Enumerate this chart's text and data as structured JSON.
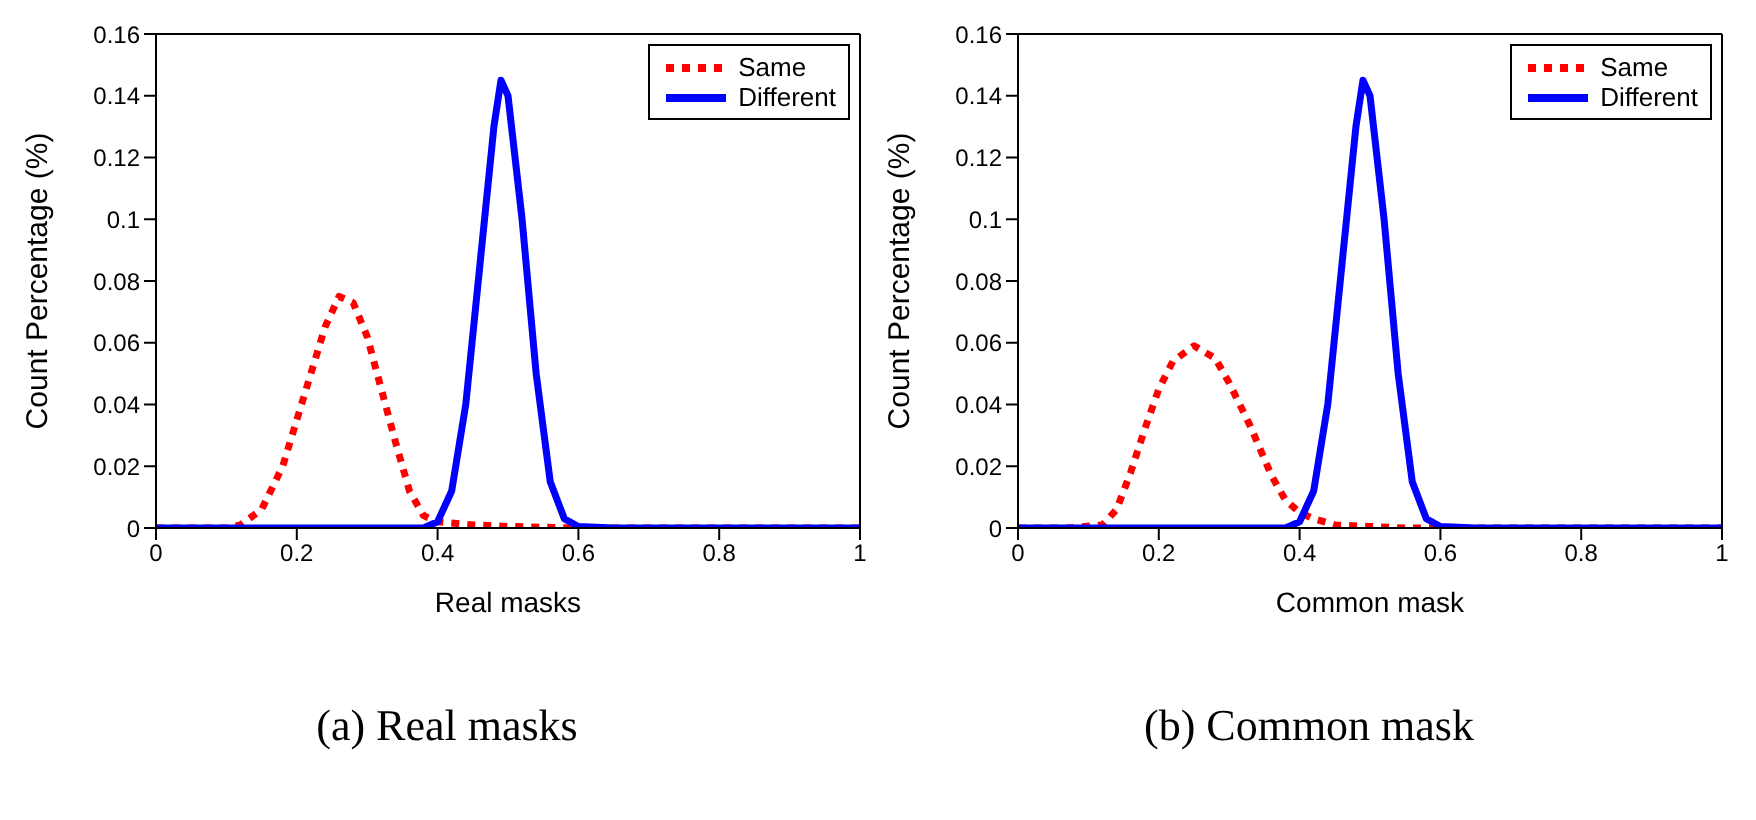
{
  "chart_data": [
    {
      "type": "line",
      "xlabel": "Real masks",
      "ylabel": "Count Percentage (%)",
      "annotations": [
        "(a) Real masks"
      ],
      "xlim": [
        0,
        1
      ],
      "ylim": [
        0,
        0.16
      ],
      "xticks": [
        0,
        0.2,
        0.4,
        0.6,
        0.8,
        1
      ],
      "yticks": [
        0,
        0.02,
        0.04,
        0.06,
        0.08,
        0.1,
        0.12,
        0.14,
        0.16
      ],
      "grid": false,
      "legend": "top right",
      "marker": "none",
      "series": [
        {
          "name": "Same",
          "color": "#ff0000",
          "line_style": "dotted",
          "x": [
            0,
            0.1,
            0.12,
            0.15,
            0.18,
            0.2,
            0.22,
            0.24,
            0.26,
            0.28,
            0.3,
            0.32,
            0.34,
            0.36,
            0.38,
            0.4,
            0.45,
            0.5,
            0.6,
            1
          ],
          "values": [
            0,
            0,
            0.001,
            0.006,
            0.02,
            0.035,
            0.05,
            0.065,
            0.075,
            0.073,
            0.062,
            0.045,
            0.028,
            0.012,
            0.004,
            0.002,
            0.001,
            0.0005,
            0,
            0
          ]
        },
        {
          "name": "Different",
          "color": "#0000ff",
          "line_style": "solid",
          "x": [
            0,
            0.38,
            0.4,
            0.42,
            0.44,
            0.46,
            0.48,
            0.49,
            0.5,
            0.52,
            0.54,
            0.56,
            0.58,
            0.6,
            0.65,
            1
          ],
          "values": [
            0,
            0,
            0.002,
            0.012,
            0.04,
            0.085,
            0.13,
            0.145,
            0.14,
            0.1,
            0.05,
            0.015,
            0.003,
            0.0005,
            0,
            0
          ]
        }
      ]
    },
    {
      "type": "line",
      "xlabel": "Common mask",
      "ylabel": "Count Percentage (%)",
      "annotations": [
        "(b) Common mask"
      ],
      "xlim": [
        0,
        1
      ],
      "ylim": [
        0,
        0.16
      ],
      "xticks": [
        0,
        0.2,
        0.4,
        0.6,
        0.8,
        1
      ],
      "yticks": [
        0,
        0.02,
        0.04,
        0.06,
        0.08,
        0.1,
        0.12,
        0.14,
        0.16
      ],
      "grid": false,
      "legend": "top right",
      "marker": "none",
      "series": [
        {
          "name": "Same",
          "color": "#ff0000",
          "line_style": "dotted",
          "x": [
            0,
            0.07,
            0.12,
            0.14,
            0.16,
            0.18,
            0.2,
            0.22,
            0.25,
            0.28,
            0.3,
            0.33,
            0.36,
            0.38,
            0.4,
            0.42,
            0.45,
            0.5,
            0.55,
            1
          ],
          "values": [
            0,
            0,
            0.001,
            0.006,
            0.018,
            0.032,
            0.045,
            0.054,
            0.059,
            0.055,
            0.047,
            0.033,
            0.017,
            0.009,
            0.005,
            0.003,
            0.001,
            0.0005,
            0,
            0
          ]
        },
        {
          "name": "Different",
          "color": "#0000ff",
          "line_style": "solid",
          "x": [
            0,
            0.38,
            0.4,
            0.42,
            0.44,
            0.46,
            0.48,
            0.49,
            0.5,
            0.52,
            0.54,
            0.56,
            0.58,
            0.6,
            0.65,
            1
          ],
          "values": [
            0,
            0,
            0.002,
            0.012,
            0.04,
            0.085,
            0.13,
            0.145,
            0.14,
            0.1,
            0.05,
            0.015,
            0.003,
            0.0005,
            0,
            0
          ]
        }
      ]
    }
  ]
}
